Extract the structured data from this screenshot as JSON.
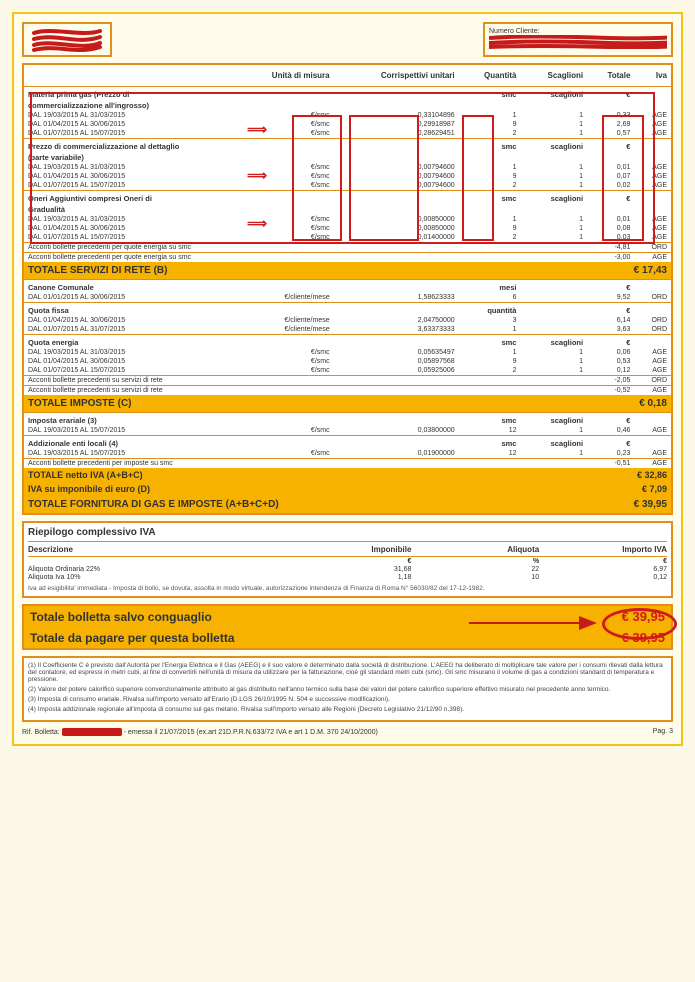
{
  "client_label": "Numero Cliente:",
  "hdr": {
    "c1": "Unità di misura",
    "c2": "Corrispettivi unitari",
    "c3": "Quantità",
    "c4": "Scaglioni",
    "c5": "Totale",
    "c6": "Iva"
  },
  "sec1": {
    "title": "Materia prima gas (Prezzo di",
    "title2": "commercializzazione all'ingrosso)",
    "u_q": "smc",
    "u_s": "scaglioni",
    "u_t": "€",
    "rows": [
      {
        "lbl": "DAL 19/03/2015 AL 31/03/2015",
        "um": "€/smc",
        "cu": "0,33104896",
        "q": "1",
        "s": "1",
        "t": "0,33",
        "iva": "AGE"
      },
      {
        "lbl": "DAL 01/04/2015 AL 30/06/2015",
        "um": "€/smc",
        "cu": "0,29918987",
        "q": "9",
        "s": "1",
        "t": "2,69",
        "iva": "AGE"
      },
      {
        "lbl": "DAL 01/07/2015 AL 15/07/2015",
        "um": "€/smc",
        "cu": "0,28629451",
        "q": "2",
        "s": "1",
        "t": "0,57",
        "iva": "AGE"
      }
    ]
  },
  "sec2": {
    "title": "Prezzo di commercializzazione al dettaglio",
    "title2": "(parte variabile)",
    "u_q": "smc",
    "u_s": "scaglioni",
    "u_t": "€",
    "rows": [
      {
        "lbl": "DAL 19/03/2015 AL 31/03/2015",
        "um": "€/smc",
        "cu": "0,00794600",
        "q": "1",
        "s": "1",
        "t": "0,01",
        "iva": "AGE"
      },
      {
        "lbl": "DAL 01/04/2015 AL 30/06/2015",
        "um": "€/smc",
        "cu": "0,00794600",
        "q": "9",
        "s": "1",
        "t": "0,07",
        "iva": "AGE"
      },
      {
        "lbl": "DAL 01/07/2015 AL 15/07/2015",
        "um": "€/smc",
        "cu": "0,00794600",
        "q": "2",
        "s": "1",
        "t": "0,02",
        "iva": "AGE"
      }
    ]
  },
  "sec3": {
    "title": "Oneri Aggiuntivi compresi Oneri di",
    "title2": "Gradualità",
    "u_q": "smc",
    "u_s": "scaglioni",
    "u_t": "€",
    "rows": [
      {
        "lbl": "DAL 19/03/2015 AL 31/03/2015",
        "um": "€/smc",
        "cu": "0,00850000",
        "q": "1",
        "s": "1",
        "t": "0,01",
        "iva": "AGE"
      },
      {
        "lbl": "DAL 01/04/2015 AL 30/06/2015",
        "um": "€/smc",
        "cu": "0,00850000",
        "q": "9",
        "s": "1",
        "t": "0,08",
        "iva": "AGE"
      },
      {
        "lbl": "DAL 01/07/2015 AL 15/07/2015",
        "um": "€/smc",
        "cu": "0,01400000",
        "q": "2",
        "s": "1",
        "t": "0,03",
        "iva": "AGE"
      }
    ]
  },
  "acc1": {
    "lbl": "Acconti bollette precedenti per quote energia su smc",
    "t": "-4,81",
    "iva": "ORD"
  },
  "acc2": {
    "lbl": "Acconti bollette precedenti per quote energia su smc",
    "t": "-3,00",
    "iva": "AGE"
  },
  "totB": {
    "lbl": "TOTALE SERVIZI DI RETE (B)",
    "t": "€ 17,43"
  },
  "canone": {
    "title": "Canone Comunale",
    "u_q": "mesi",
    "u_t": "€",
    "rows": [
      {
        "lbl": "DAL 01/01/2015 AL 30/06/2015",
        "um": "€/cliente/mese",
        "cu": "1,58623333",
        "q": "6",
        "t": "9,52",
        "iva": "ORD"
      }
    ]
  },
  "qfissa": {
    "title": "Quota fissa",
    "u_q": "quantità",
    "u_t": "€",
    "rows": [
      {
        "lbl": "DAL 01/04/2015 AL 30/06/2015",
        "um": "€/cliente/mese",
        "cu": "2,04750000",
        "q": "3",
        "t": "6,14",
        "iva": "ORD"
      },
      {
        "lbl": "DAL 01/07/2015 AL 31/07/2015",
        "um": "€/cliente/mese",
        "cu": "3,63373333",
        "q": "1",
        "t": "3,63",
        "iva": "ORD"
      }
    ]
  },
  "qenergia": {
    "title": "Quota energia",
    "u_q": "smc",
    "u_s": "scaglioni",
    "u_t": "€",
    "rows": [
      {
        "lbl": "DAL 19/03/2015 AL 31/03/2015",
        "um": "€/smc",
        "cu": "0,05635497",
        "q": "1",
        "s": "1",
        "t": "0,06",
        "iva": "AGE"
      },
      {
        "lbl": "DAL 01/04/2015 AL 30/06/2015",
        "um": "€/smc",
        "cu": "0,05897568",
        "q": "9",
        "s": "1",
        "t": "0,53",
        "iva": "AGE"
      },
      {
        "lbl": "DAL 01/07/2015 AL 15/07/2015",
        "um": "€/smc",
        "cu": "0,05925006",
        "q": "2",
        "s": "1",
        "t": "0,12",
        "iva": "AGE"
      }
    ]
  },
  "acc3": {
    "lbl": "Acconti bollette precedenti su servizi di rete",
    "t": "-2,05",
    "iva": "ORD"
  },
  "acc4": {
    "lbl": "Acconti bollette precedenti su servizi di rete",
    "t": "-0,52",
    "iva": "AGE"
  },
  "totC": {
    "lbl": "TOTALE IMPOSTE (C)",
    "t": "€ 0,18"
  },
  "imperar": {
    "title": "Imposta erariale (3)",
    "u_q": "smc",
    "u_s": "scaglioni",
    "u_t": "€",
    "rows": [
      {
        "lbl": "DAL 19/03/2015 AL 15/07/2015",
        "um": "€/smc",
        "cu": "0,03800000",
        "q": "12",
        "s": "1",
        "t": "0,46",
        "iva": "AGE"
      }
    ]
  },
  "addenti": {
    "title": "Addizionale enti locali (4)",
    "u_q": "smc",
    "u_s": "scaglioni",
    "u_t": "€",
    "rows": [
      {
        "lbl": "DAL 19/03/2015 AL 15/07/2015",
        "um": "€/smc",
        "cu": "0,01900000",
        "q": "12",
        "s": "1",
        "t": "0,23",
        "iva": "AGE"
      }
    ]
  },
  "acc5": {
    "lbl": "Acconti bollette precedenti per imposte su smc",
    "t": "-0,51",
    "iva": "AGE"
  },
  "totNetto": {
    "lbl": "TOTALE netto IVA (A+B+C)",
    "t": "€ 32,86"
  },
  "ivaImp": {
    "lbl": "IVA su imponibile di euro (D)",
    "t": "€ 7,09"
  },
  "totForn": {
    "lbl": "TOTALE FORNITURA DI GAS E IMPOSTE (A+B+C+D)",
    "t": "€ 39,95"
  },
  "vat": {
    "title": "Riepilogo complessivo IVA",
    "h1": "Descrizione",
    "h2": "Imponibile",
    "h3": "Aliquota",
    "h4": "Importo IVA",
    "u2": "€",
    "u3": "%",
    "u4": "€",
    "rows": [
      {
        "d": "Aliquota Ordinaria 22%",
        "imp": "31,68",
        "al": "22",
        "imp_iva": "6,97"
      },
      {
        "d": "Aliquota Iva 10%",
        "imp": "1,18",
        "al": "10",
        "imp_iva": "0,12"
      }
    ],
    "note": "Iva ad esigibilita' immediata - Imposta di bollo, se dovuta, assolta in modo virtuale, autorizzazione intendenza di Finanza di Roma N° 56030/82 del 17-12-1982."
  },
  "finals": {
    "l1": "Totale bolletta salvo conguaglio",
    "v1": "€ 39,95",
    "l2": "Totale da pagare per questa bolletta",
    "v2": "€ 39,95"
  },
  "notes": {
    "n1": "(1)  Il Coefficiente C è previsto dall'Autorità per l'Energia Elettrica e il Gas (AEEG) e il suo valore è determinato dalla società di distribuzione. L'AEEG ha deliberato di moltiplicare tale valore per i consumi rilevati dalla lettura del contatore, ed espressi in metri cubi, al fine di convertirli nell'unità di misura da utilizzare per la fatturazione, cioè gli standard metri cubi (smc). Gli smc misurano il volume di gas a condizioni standard di temperatura e pressione.",
    "n2": "(2)  Valore del potere calorifico superiore convenzionalmente attribuito al gas distribuito nell'anno termico sulla base dei valori del potere calorifico superiore effettivo misurato nel precedente anno termico.",
    "n3": "(3)  Imposta di consumo erariale. Rivalsa sull'importo versato all'Erario (D.LGS 26/10/1995 N. 504 e successive modificazioni).",
    "n4": "(4)  Imposta addizionale regionale all'imposta di consumo sul gas metano. Rivalsa sull'importo versato alle Regioni (Decreto Legislativo 21/12/90 n.398)."
  },
  "footer": {
    "rif_label": "Rif. Bolletta:",
    "rif_text": " - emessa il 21/07/2015 (ex.art 21D.P.R.N.633/72 IVA e art 1 D.M. 370 24/10/2000)",
    "pag": "Pag. 3"
  },
  "colors": {
    "red": "#C71A1A"
  }
}
